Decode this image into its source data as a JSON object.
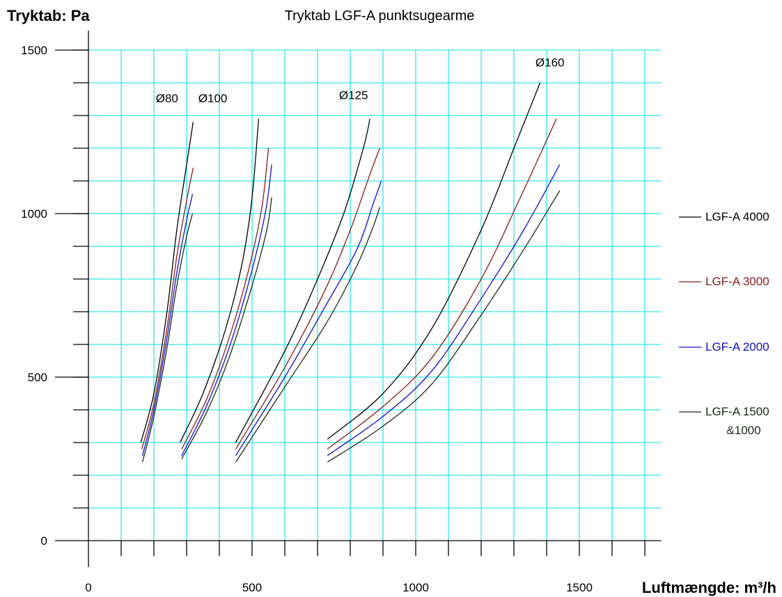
{
  "chart_data": {
    "type": "line",
    "title": "Tryktab LGF-A punktsugearme",
    "ylabel": "Tryktab: Pa",
    "xlabel": "Luftmængde: m³/h",
    "xlim": [
      0,
      1750
    ],
    "ylim": [
      0,
      1500
    ],
    "x_ticks": [
      "0",
      "500",
      "1000",
      "1500"
    ],
    "y_ticks": [
      "0",
      "500",
      "1000",
      "1500"
    ],
    "grid": true,
    "legend_position": "right",
    "colors": {
      "grid": "#33e6e6",
      "axis": "#000000",
      "LGF-A 4000": "#000000",
      "LGF-A 3000": "#8b1a1a",
      "LGF-A 2000": "#1010cc",
      "LGF-A 1500 &1000": "#1a2a1a"
    },
    "legend": [
      {
        "label": "LGF-A 4000",
        "color": "#000000"
      },
      {
        "label": "LGF-A 3000",
        "color": "#8b1a1a"
      },
      {
        "label": "LGF-A 2000",
        "color": "#1010cc"
      },
      {
        "label": "LGF-A 1500",
        "label2": "&1000",
        "color": "#1a2a1a"
      }
    ],
    "groups": [
      {
        "label": "Ø80",
        "label_at": [
          240,
          1340
        ],
        "series": [
          {
            "series": "LGF-A 4000",
            "points": [
              [
                160,
                300
              ],
              [
                200,
                450
              ],
              [
                240,
                700
              ],
              [
                270,
                950
              ],
              [
                300,
                1150
              ],
              [
                320,
                1280
              ]
            ]
          },
          {
            "series": "LGF-A 3000",
            "points": [
              [
                163,
                280
              ],
              [
                200,
                420
              ],
              [
                240,
                650
              ],
              [
                270,
                870
              ],
              [
                300,
                1040
              ],
              [
                320,
                1140
              ]
            ]
          },
          {
            "series": "LGF-A 2000",
            "points": [
              [
                165,
                260
              ],
              [
                200,
                400
              ],
              [
                240,
                620
              ],
              [
                270,
                820
              ],
              [
                300,
                980
              ],
              [
                318,
                1060
              ]
            ]
          },
          {
            "series": "LGF-A 1500 &1000",
            "points": [
              [
                165,
                240
              ],
              [
                200,
                380
              ],
              [
                240,
                590
              ],
              [
                270,
                780
              ],
              [
                300,
                930
              ],
              [
                318,
                1000
              ]
            ]
          }
        ]
      },
      {
        "label": "Ø100",
        "label_at": [
          380,
          1340
        ],
        "series": [
          {
            "series": "LGF-A 4000",
            "points": [
              [
                280,
                300
              ],
              [
                350,
                450
              ],
              [
                420,
                650
              ],
              [
                470,
                850
              ],
              [
                500,
                1050
              ],
              [
                520,
                1290
              ]
            ]
          },
          {
            "series": "LGF-A 3000",
            "points": [
              [
                285,
                280
              ],
              [
                360,
                430
              ],
              [
                430,
                620
              ],
              [
                490,
                830
              ],
              [
                530,
                1020
              ],
              [
                550,
                1200
              ]
            ]
          },
          {
            "series": "LGF-A 2000",
            "points": [
              [
                285,
                260
              ],
              [
                360,
                410
              ],
              [
                430,
                590
              ],
              [
                490,
                790
              ],
              [
                540,
                1000
              ],
              [
                560,
                1150
              ]
            ]
          },
          {
            "series": "LGF-A 1500 &1000",
            "points": [
              [
                285,
                250
              ],
              [
                360,
                390
              ],
              [
                430,
                560
              ],
              [
                500,
                780
              ],
              [
                545,
                950
              ],
              [
                560,
                1050
              ]
            ]
          }
        ]
      },
      {
        "label": "Ø125",
        "label_at": [
          810,
          1350
        ],
        "series": [
          {
            "series": "LGF-A 4000",
            "points": [
              [
                450,
                300
              ],
              [
                600,
                580
              ],
              [
                700,
                800
              ],
              [
                780,
                1000
              ],
              [
                840,
                1200
              ],
              [
                860,
                1290
              ]
            ]
          },
          {
            "series": "LGF-A 3000",
            "points": [
              [
                450,
                280
              ],
              [
                600,
                530
              ],
              [
                720,
                760
              ],
              [
                800,
                950
              ],
              [
                860,
                1120
              ],
              [
                890,
                1200
              ]
            ]
          },
          {
            "series": "LGF-A 2000",
            "points": [
              [
                450,
                260
              ],
              [
                600,
                500
              ],
              [
                720,
                710
              ],
              [
                820,
                890
              ],
              [
                870,
                1030
              ],
              [
                895,
                1100
              ]
            ]
          },
          {
            "series": "LGF-A 1500 &1000",
            "points": [
              [
                450,
                240
              ],
              [
                600,
                470
              ],
              [
                730,
                670
              ],
              [
                820,
                840
              ],
              [
                870,
                960
              ],
              [
                890,
                1020
              ]
            ]
          }
        ]
      },
      {
        "label": "Ø160",
        "label_at": [
          1410,
          1450
        ],
        "series": [
          {
            "series": "LGF-A 4000",
            "points": [
              [
                730,
                310
              ],
              [
                900,
                450
              ],
              [
                1050,
                650
              ],
              [
                1200,
                950
              ],
              [
                1300,
                1200
              ],
              [
                1380,
                1400
              ]
            ]
          },
          {
            "series": "LGF-A 3000",
            "points": [
              [
                730,
                280
              ],
              [
                900,
                410
              ],
              [
                1050,
                560
              ],
              [
                1200,
                800
              ],
              [
                1320,
                1050
              ],
              [
                1430,
                1290
              ]
            ]
          },
          {
            "series": "LGF-A 2000",
            "points": [
              [
                730,
                260
              ],
              [
                900,
                380
              ],
              [
                1050,
                520
              ],
              [
                1200,
                740
              ],
              [
                1330,
                950
              ],
              [
                1440,
                1150
              ]
            ]
          },
          {
            "series": "LGF-A 1500 &1000",
            "points": [
              [
                730,
                240
              ],
              [
                900,
                350
              ],
              [
                1050,
                480
              ],
              [
                1200,
                690
              ],
              [
                1330,
                890
              ],
              [
                1440,
                1070
              ]
            ]
          }
        ]
      }
    ]
  }
}
